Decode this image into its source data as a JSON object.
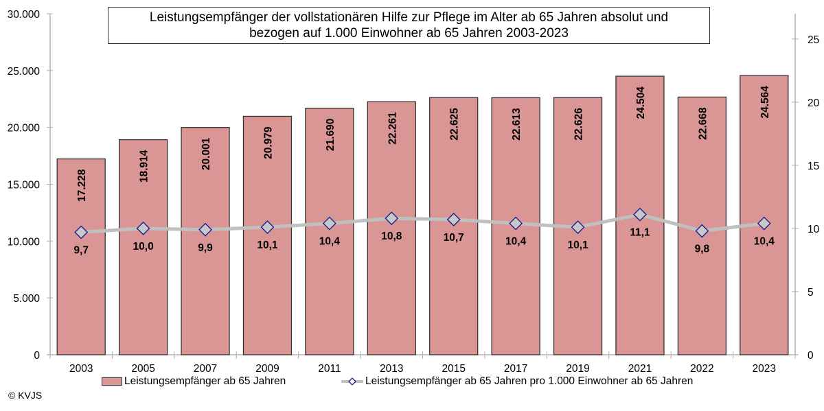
{
  "chart_data": {
    "type": "bar",
    "title_line1": "Leistungsempfänger der vollstationären Hilfe zur Pflege im Alter ab 65 Jahren absolut und",
    "title_line2": "bezogen auf 1.000 Einwohner ab 65 Jahren 2003-2023",
    "categories": [
      "2003",
      "2005",
      "2007",
      "2009",
      "2011",
      "2013",
      "2015",
      "2017",
      "2019",
      "2021",
      "2022",
      "2023"
    ],
    "series": [
      {
        "name": "Leistungsempfänger ab 65 Jahren",
        "type": "bar",
        "axis": "left",
        "values": [
          17228,
          18914,
          20001,
          20979,
          21690,
          22261,
          22625,
          22613,
          22626,
          24504,
          22668,
          24564
        ],
        "labels": [
          "17.228",
          "18.914",
          "20.001",
          "20.979",
          "21.690",
          "22.261",
          "22.625",
          "22.613",
          "22.626",
          "24.504",
          "22.668",
          "24.564"
        ],
        "color": "#da9694"
      },
      {
        "name": "Leistungsempfänger ab 65 Jahren pro 1.000 Einwohner ab 65 Jahren",
        "type": "line",
        "axis": "right",
        "values": [
          9.7,
          10.0,
          9.9,
          10.1,
          10.4,
          10.8,
          10.7,
          10.4,
          10.1,
          11.1,
          9.8,
          10.4
        ],
        "labels": [
          "9,7",
          "10,0",
          "9,9",
          "10,1",
          "10,4",
          "10,8",
          "10,7",
          "10,4",
          "10,1",
          "11,1",
          "9,8",
          "10,4"
        ],
        "color": "#c0c0c0",
        "marker_color": "#1f1f8f"
      }
    ],
    "y_left": {
      "ylim": [
        0,
        30000
      ],
      "ticks": [
        0,
        5000,
        10000,
        15000,
        20000,
        25000,
        30000
      ],
      "tick_labels": [
        "0",
        "5.000",
        "10.000",
        "15.000",
        "20.000",
        "25.000",
        "30.000"
      ]
    },
    "y_right": {
      "ylim": [
        0,
        27
      ],
      "ticks": [
        0,
        5,
        10,
        15,
        20,
        25
      ],
      "tick_labels": [
        "0",
        "5",
        "10",
        "15",
        "20",
        "25"
      ]
    },
    "xlabel": "",
    "ylabel": "",
    "grid": false,
    "legend_position": "bottom"
  },
  "footer": {
    "copyright": "© KVJS"
  }
}
